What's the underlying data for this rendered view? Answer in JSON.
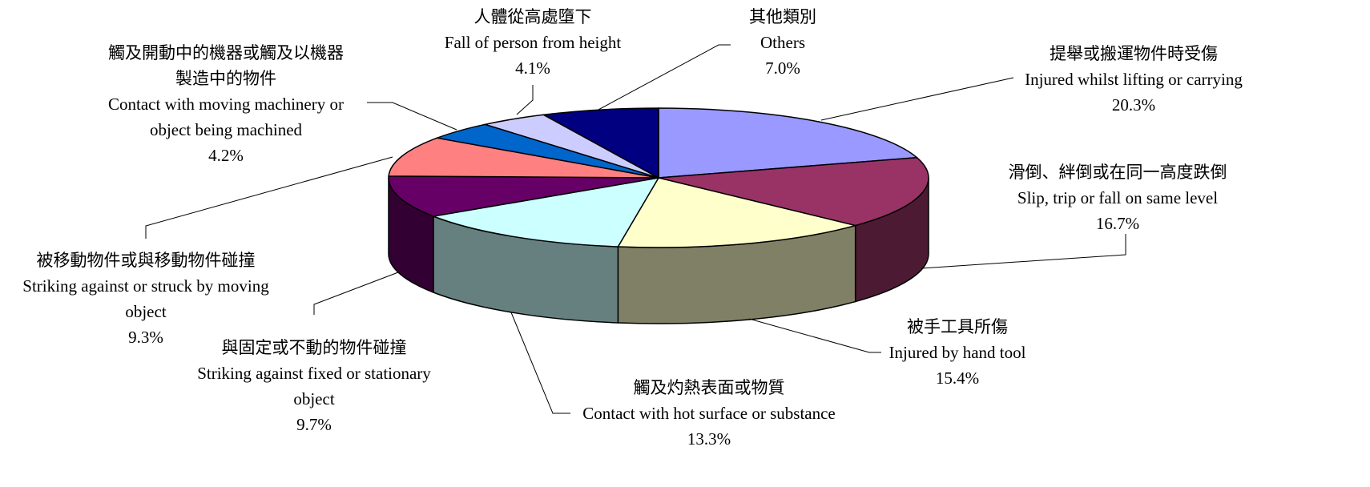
{
  "chart_data": {
    "type": "pie",
    "labels_zh": [
      "提舉或搬運物件時受傷",
      "滑倒、絆倒或在同一高度跌倒",
      "被手工具所傷",
      "觸及灼熱表面或物質",
      "與固定或不動的物件碰撞",
      "被移動物件或與移動物件碰撞",
      "觸及開動中的機器或觸及以機器\n製造中的物件",
      "人體從高處墮下",
      "其他類別"
    ],
    "categories": [
      "Injured whilst lifting or carrying",
      "Slip, trip or fall on same level",
      "Injured by hand tool",
      "Contact with hot surface or substance",
      "Striking against fixed or stationary\nobject",
      "Striking against or struck by moving\nobject",
      "Contact with moving machinery or\nobject being machined",
      "Fall of person from height",
      "Others"
    ],
    "values": [
      20.3,
      16.7,
      15.4,
      13.3,
      9.7,
      9.3,
      4.2,
      4.1,
      7.0
    ],
    "value_labels": [
      "20.3%",
      "16.7%",
      "15.4%",
      "13.3%",
      "9.7%",
      "9.3%",
      "4.2%",
      "4.1%",
      "7.0%"
    ],
    "colors": [
      "#9999ff",
      "#993366",
      "#ffffcc",
      "#ccffff",
      "#660066",
      "#ff8080",
      "#0066cc",
      "#ccccff",
      "#000080"
    ]
  }
}
